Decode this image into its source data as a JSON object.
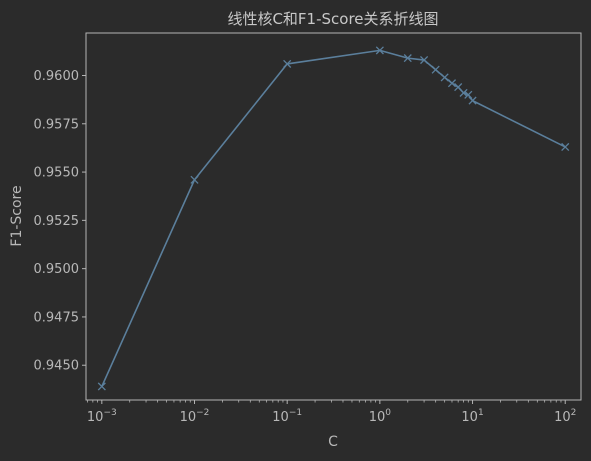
{
  "chart_data": {
    "type": "line",
    "title": "线性核C和F1-Score关系折线图",
    "xlabel": "C",
    "ylabel": "F1-Score",
    "xscale": "log",
    "xlim": [
      0.000675,
      148
    ],
    "ylim": [
      0.9432,
      0.9622
    ],
    "xticks": [
      {
        "value": 0.001,
        "exp": "−3"
      },
      {
        "value": 0.01,
        "exp": "−2"
      },
      {
        "value": 0.1,
        "exp": "−1"
      },
      {
        "value": 1,
        "exp": "0"
      },
      {
        "value": 10,
        "exp": "1"
      },
      {
        "value": 100,
        "exp": "2"
      }
    ],
    "tick_base": "10",
    "yticks": [
      "0.9450",
      "0.9475",
      "0.9500",
      "0.9525",
      "0.9550",
      "0.9575",
      "0.9600"
    ],
    "grid": false,
    "marker": "x",
    "colors": {
      "background": "#2b2b2b",
      "axes": "#b4b4b4",
      "series": "#5b7f9c",
      "text": "#b8b8b8"
    },
    "series": [
      {
        "x": [
          0.001,
          0.01,
          0.1,
          1,
          2,
          3,
          4,
          5,
          6,
          7,
          8,
          9,
          10,
          100
        ],
        "y": [
          0.9439,
          0.9546,
          0.9606,
          0.9613,
          0.9609,
          0.9608,
          0.9603,
          0.9599,
          0.9596,
          0.9594,
          0.9591,
          0.959,
          0.9587,
          0.9563
        ]
      }
    ]
  }
}
